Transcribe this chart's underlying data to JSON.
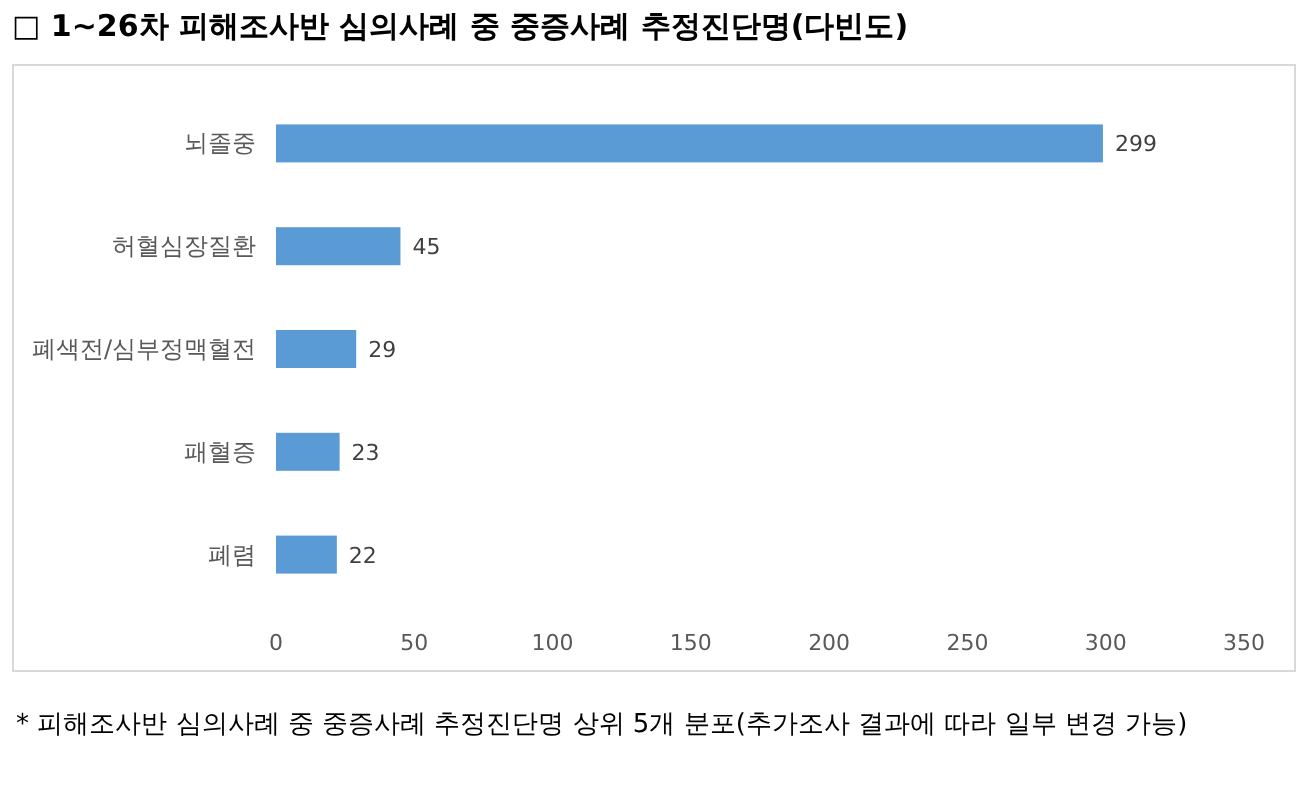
{
  "chart_data": {
    "type": "bar",
    "orientation": "horizontal",
    "title": "□ 1~26차 피해조사반 심의사례 중 중증사례 추정진단명(다빈도)",
    "categories": [
      "뇌졸중",
      "허혈심장질환",
      "폐색전/심부정맥혈전",
      "패혈증",
      "폐렴"
    ],
    "values": [
      299,
      45,
      29,
      23,
      22
    ],
    "color": "#5b9bd5",
    "data_labels": true,
    "xlim": [
      0,
      350
    ],
    "xticks": [
      0,
      50,
      100,
      150,
      200,
      250,
      300,
      350
    ],
    "annotations": [
      "* 피해조사반 심의사례 중 중증사례 추정진단명 상위 5개 분포(추가조사 결과에 따라 일부 변경 가능)"
    ]
  }
}
